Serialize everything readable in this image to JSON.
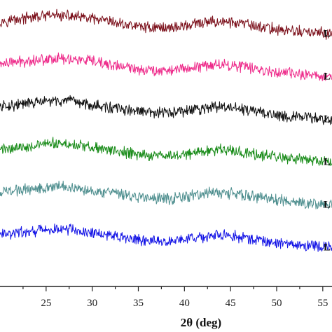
{
  "chart_data": {
    "type": "line",
    "title": "",
    "xlabel": "2θ (deg)",
    "ylabel": "",
    "xlim": [
      20,
      56
    ],
    "xticks": [
      25,
      30,
      35,
      40,
      45,
      50,
      55
    ],
    "grid": false,
    "legend": "none",
    "series": [
      {
        "label": "L",
        "color": "#7b0f1a",
        "x": [
          20,
          22,
          24,
          26,
          28,
          30,
          32,
          34,
          36,
          37.5,
          39,
          41,
          43,
          44,
          46,
          48,
          50,
          52,
          54,
          56
        ],
        "y": [
          0.78,
          0.86,
          0.94,
          1.0,
          0.96,
          0.86,
          0.74,
          0.64,
          0.56,
          0.54,
          0.56,
          0.66,
          0.76,
          0.77,
          0.7,
          0.58,
          0.48,
          0.4,
          0.35,
          0.32
        ]
      },
      {
        "label": "L",
        "color": "#ee2a8a",
        "x": [
          20,
          22,
          24,
          26,
          28,
          30,
          32,
          34,
          36,
          37.5,
          39,
          41,
          43,
          44,
          46,
          48,
          50,
          52,
          54,
          56
        ],
        "y": [
          0.78,
          0.86,
          0.94,
          1.0,
          0.96,
          0.86,
          0.74,
          0.64,
          0.56,
          0.54,
          0.56,
          0.66,
          0.76,
          0.77,
          0.7,
          0.58,
          0.48,
          0.4,
          0.35,
          0.32
        ]
      },
      {
        "label": "L",
        "color": "#111111",
        "x": [
          20,
          22,
          24,
          26,
          28,
          30,
          32,
          34,
          36,
          37.5,
          39,
          41,
          43,
          44,
          46,
          48,
          50,
          52,
          54,
          56
        ],
        "y": [
          0.78,
          0.86,
          0.94,
          1.0,
          0.96,
          0.86,
          0.74,
          0.64,
          0.56,
          0.54,
          0.56,
          0.66,
          0.76,
          0.77,
          0.7,
          0.58,
          0.48,
          0.4,
          0.35,
          0.32
        ]
      },
      {
        "label": "L",
        "color": "#1a8c1a",
        "x": [
          20,
          22,
          24,
          26,
          28,
          30,
          32,
          34,
          36,
          37.5,
          39,
          41,
          43,
          44,
          46,
          48,
          50,
          52,
          54,
          56
        ],
        "y": [
          0.78,
          0.86,
          0.94,
          1.0,
          0.96,
          0.86,
          0.74,
          0.64,
          0.56,
          0.54,
          0.56,
          0.66,
          0.76,
          0.77,
          0.7,
          0.58,
          0.48,
          0.4,
          0.35,
          0.32
        ]
      },
      {
        "label": "L",
        "color": "#4f8f8f",
        "x": [
          20,
          22,
          24,
          26,
          28,
          30,
          32,
          34,
          36,
          37.5,
          39,
          41,
          43,
          44,
          46,
          48,
          50,
          52,
          54,
          56
        ],
        "y": [
          0.78,
          0.86,
          0.94,
          1.0,
          0.96,
          0.86,
          0.74,
          0.64,
          0.56,
          0.54,
          0.56,
          0.66,
          0.76,
          0.77,
          0.7,
          0.58,
          0.48,
          0.4,
          0.35,
          0.32
        ]
      },
      {
        "label": "L",
        "color": "#1414e6",
        "x": [
          20,
          22,
          24,
          26,
          28,
          30,
          32,
          34,
          36,
          37.5,
          39,
          41,
          43,
          44,
          46,
          48,
          50,
          52,
          54,
          56
        ],
        "y": [
          0.78,
          0.86,
          0.94,
          1.0,
          0.96,
          0.86,
          0.74,
          0.64,
          0.56,
          0.54,
          0.56,
          0.66,
          0.76,
          0.77,
          0.7,
          0.58,
          0.48,
          0.4,
          0.35,
          0.32
        ]
      }
    ]
  }
}
